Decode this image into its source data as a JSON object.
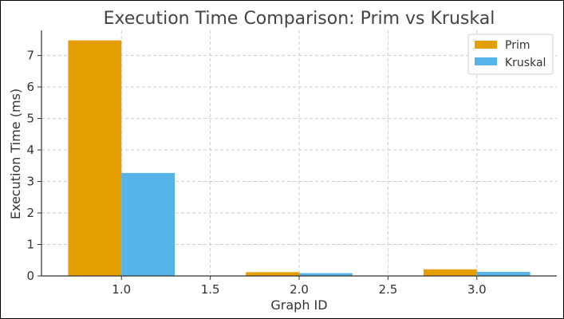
{
  "chart_data": {
    "type": "bar",
    "title": "Execution Time Comparison: Prim vs Kruskal",
    "xlabel": "Graph ID",
    "ylabel": "Execution Time (ms)",
    "categories": [
      1,
      2,
      3
    ],
    "xlim": [
      0.55,
      3.45
    ],
    "ylim": [
      0,
      7.8
    ],
    "xticks": [
      "1.0",
      "1.5",
      "2.0",
      "2.5",
      "3.0"
    ],
    "yticks": [
      "0",
      "1",
      "2",
      "3",
      "4",
      "5",
      "6",
      "7"
    ],
    "grid": true,
    "legend_position": "top-right",
    "series": [
      {
        "name": "Prim",
        "color": "#E69F00",
        "values": [
          7.48,
          0.12,
          0.21
        ]
      },
      {
        "name": "Kruskal",
        "color": "#56B4E9",
        "values": [
          3.27,
          0.09,
          0.13
        ]
      }
    ]
  }
}
